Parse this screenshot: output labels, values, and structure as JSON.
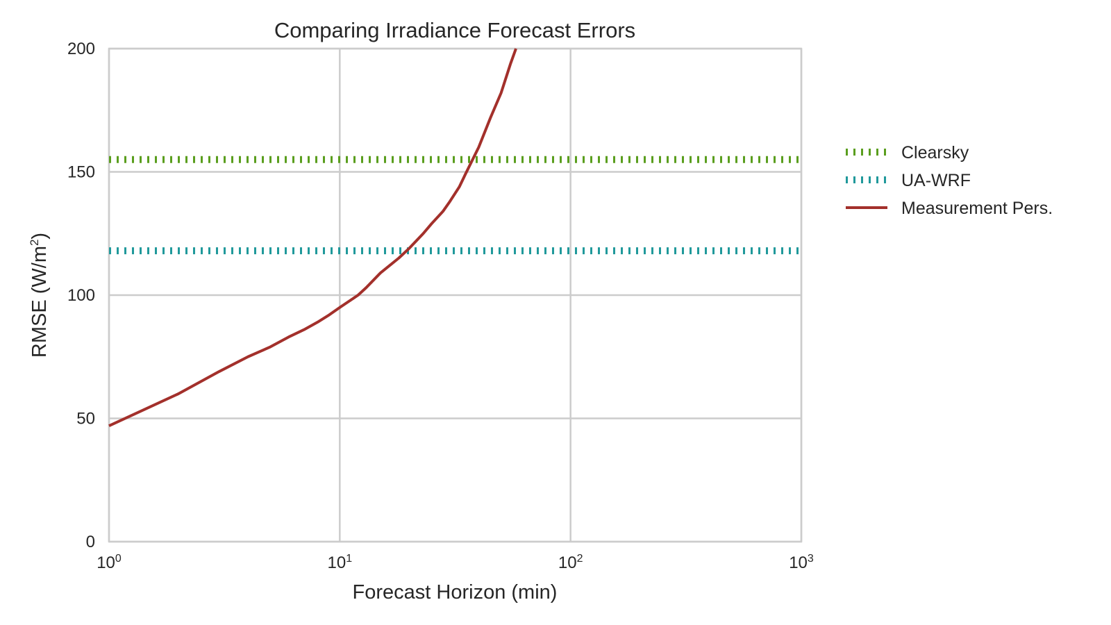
{
  "chart_data": {
    "type": "line",
    "title": "Comparing Irradiance Forecast Errors",
    "xlabel": "Forecast Horizon (min)",
    "ylabel_main": "RMSE (W/m",
    "ylabel_sup": "2",
    "ylabel_close": ")",
    "x_scale": "log",
    "xlim": [
      1,
      1000
    ],
    "ylim": [
      0,
      200
    ],
    "grid": true,
    "legend_position": "right",
    "x_ticks": [
      {
        "value": 1,
        "base": "10",
        "exp": "0"
      },
      {
        "value": 10,
        "base": "10",
        "exp": "1"
      },
      {
        "value": 100,
        "base": "10",
        "exp": "2"
      },
      {
        "value": 1000,
        "base": "10",
        "exp": "3"
      }
    ],
    "y_ticks": [
      {
        "value": 0,
        "label": "0"
      },
      {
        "value": 50,
        "label": "50"
      },
      {
        "value": 100,
        "label": "100"
      },
      {
        "value": 150,
        "label": "150"
      },
      {
        "value": 200,
        "label": "200"
      }
    ],
    "series": [
      {
        "name": "Clearsky",
        "style": "dotted",
        "color": "#5a9e1e",
        "x": [
          1,
          1000
        ],
        "y": [
          155,
          155
        ]
      },
      {
        "name": "UA-WRF",
        "style": "dotted",
        "color": "#20999b",
        "x": [
          1,
          1000
        ],
        "y": [
          118,
          118
        ]
      },
      {
        "name": "Measurement Pers.",
        "style": "solid",
        "color": "#a3302b",
        "x": [
          1,
          2,
          3,
          4,
          5,
          6,
          7,
          8,
          9,
          10,
          12,
          13,
          15,
          18,
          20,
          23,
          25,
          28,
          30,
          33,
          35,
          40,
          45,
          50,
          55,
          58
        ],
        "y": [
          47,
          60,
          69,
          75,
          79,
          83,
          86,
          89,
          92,
          95,
          100,
          103,
          109,
          115,
          119,
          125,
          129,
          134,
          138,
          144,
          149,
          160,
          172,
          182,
          194,
          200
        ]
      }
    ]
  }
}
